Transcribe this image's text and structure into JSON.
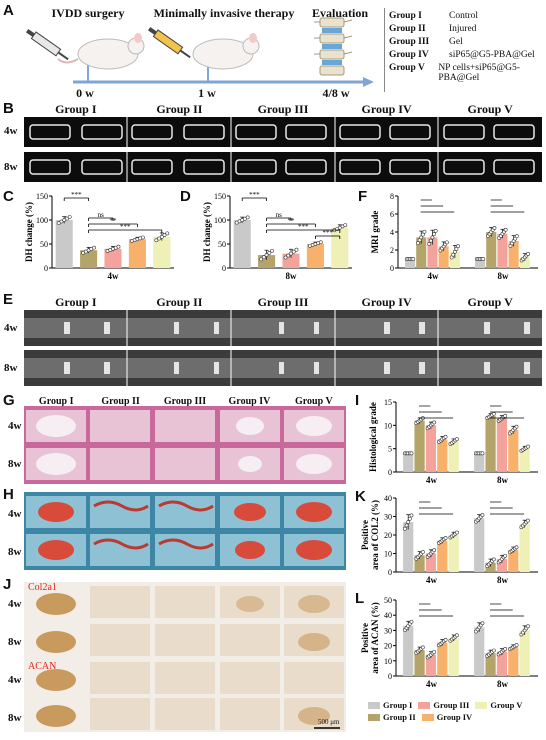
{
  "panel_letters": [
    "A",
    "B",
    "C",
    "D",
    "F",
    "E",
    "G",
    "I",
    "H",
    "K",
    "J",
    "L"
  ],
  "schematic": {
    "steps": [
      "IVDD surgery",
      "Minimally invasive therapy",
      "Evaluation"
    ],
    "timepoints": [
      "0 w",
      "1 w",
      "4/8 w"
    ]
  },
  "groups_legend": [
    {
      "id": "Group I",
      "desc": "Control"
    },
    {
      "id": "Group II",
      "desc": "Injured"
    },
    {
      "id": "Group III",
      "desc": "Gel"
    },
    {
      "id": "Group IV",
      "desc": "siP65@G5-PBA@Gel"
    },
    {
      "id": "Group V",
      "desc": "NP cells+siP65@G5-PBA@Gel"
    }
  ],
  "group_titles": [
    "Group I",
    "Group II",
    "Group III",
    "Group IV",
    "Group V"
  ],
  "row_labels": {
    "w4": "4w",
    "w8": "8w"
  },
  "stain_labels": {
    "col": "Col2a1",
    "acan": "ACAN"
  },
  "scalebar": "500 μm",
  "colors": {
    "g1": "#c9c9c9",
    "g2": "#b5a469",
    "g3": "#f4a29c",
    "g4": "#f7b16b",
    "g5": "#eef0b5",
    "sig": "#111111"
  },
  "bottom_legend": [
    "Group I",
    "Group II",
    "Group III",
    "Group IV",
    "Group V"
  ],
  "chart_data": [
    {
      "id": "C",
      "type": "bar",
      "ylabel": "DH change (%)",
      "xlabel": "4w",
      "ylim": [
        0,
        150
      ],
      "yticks": [
        0,
        50,
        100,
        150
      ],
      "values": [
        100,
        37,
        40,
        60,
        65
      ],
      "errors": [
        7,
        6,
        5,
        4,
        8
      ],
      "sig": [
        {
          "a": 0,
          "b": 1,
          "t": "***"
        },
        {
          "a": 1,
          "b": 2,
          "t": "ns"
        },
        {
          "a": 1,
          "b": 3,
          "t": "**"
        },
        {
          "a": 1,
          "b": 4,
          "t": "***"
        }
      ]
    },
    {
      "id": "D",
      "type": "bar",
      "ylabel": "DH change (%)",
      "xlabel": "8w",
      "ylim": [
        0,
        150
      ],
      "yticks": [
        0,
        50,
        100,
        150
      ],
      "values": [
        100,
        27,
        30,
        50,
        84
      ],
      "errors": [
        6,
        10,
        9,
        4,
        6
      ],
      "sig": [
        {
          "a": 0,
          "b": 1,
          "t": "***"
        },
        {
          "a": 1,
          "b": 2,
          "t": "ns"
        },
        {
          "a": 1,
          "b": 3,
          "t": "**"
        },
        {
          "a": 1,
          "b": 4,
          "t": "***"
        },
        {
          "a": 3,
          "b": 4,
          "t": "***"
        }
      ]
    },
    {
      "id": "F",
      "type": "bar",
      "ylabel": "MRI grade",
      "categories": [
        "4w",
        "8w"
      ],
      "ylim": [
        0,
        8
      ],
      "yticks": [
        0,
        2,
        4,
        6,
        8
      ],
      "series": [
        {
          "name": "Group I",
          "values": [
            1,
            1
          ],
          "errors": [
            0,
            0
          ]
        },
        {
          "name": "Group II",
          "values": [
            3.4,
            4.0
          ],
          "errors": [
            0.7,
            0.5
          ]
        },
        {
          "name": "Group III",
          "values": [
            3.4,
            3.8
          ],
          "errors": [
            0.8,
            0.5
          ]
        },
        {
          "name": "Group IV",
          "values": [
            2.4,
            3.0
          ],
          "errors": [
            0.5,
            0.6
          ]
        },
        {
          "name": "Group V",
          "values": [
            1.8,
            1.2
          ],
          "errors": [
            0.7,
            0.4
          ]
        }
      ]
    },
    {
      "id": "I",
      "type": "bar",
      "ylabel": "Histological grade",
      "categories": [
        "4w",
        "8w"
      ],
      "ylim": [
        0,
        15
      ],
      "yticks": [
        0,
        5,
        10,
        15
      ],
      "series": [
        {
          "name": "Group I",
          "values": [
            4,
            4
          ],
          "errors": [
            0,
            0
          ]
        },
        {
          "name": "Group II",
          "values": [
            11,
            12
          ],
          "errors": [
            0.6,
            0.5
          ]
        },
        {
          "name": "Group III",
          "values": [
            10,
            11.5
          ],
          "errors": [
            0.7,
            0.6
          ]
        },
        {
          "name": "Group IV",
          "values": [
            7,
            9
          ],
          "errors": [
            0.6,
            0.8
          ]
        },
        {
          "name": "Group V",
          "values": [
            6.5,
            5
          ],
          "errors": [
            0.6,
            0.5
          ]
        }
      ]
    },
    {
      "id": "K",
      "type": "bar",
      "ylabel": "Positive area of COL2 (%)",
      "categories": [
        "4w",
        "8w"
      ],
      "ylim": [
        0,
        40
      ],
      "yticks": [
        0,
        10,
        20,
        30,
        40
      ],
      "series": [
        {
          "name": "Group I",
          "values": [
            27,
            29
          ],
          "errors": [
            4,
            2
          ]
        },
        {
          "name": "Group II",
          "values": [
            9,
            5
          ],
          "errors": [
            2,
            2
          ]
        },
        {
          "name": "Group III",
          "values": [
            10,
            7
          ],
          "errors": [
            2,
            2
          ]
        },
        {
          "name": "Group IV",
          "values": [
            17,
            12
          ],
          "errors": [
            1.5,
            1.5
          ]
        },
        {
          "name": "Group V",
          "values": [
            20,
            26
          ],
          "errors": [
            1.5,
            2
          ]
        }
      ]
    },
    {
      "id": "L",
      "type": "bar",
      "ylabel": "Positive area of ACAN (%)",
      "categories": [
        "4w",
        "8w"
      ],
      "ylim": [
        0,
        50
      ],
      "yticks": [
        0,
        10,
        20,
        30,
        40,
        50
      ],
      "series": [
        {
          "name": "Group I",
          "values": [
            33,
            32
          ],
          "errors": [
            3,
            3
          ]
        },
        {
          "name": "Group II",
          "values": [
            17,
            15
          ],
          "errors": [
            2,
            2
          ]
        },
        {
          "name": "Group III",
          "values": [
            14,
            16
          ],
          "errors": [
            2,
            2
          ]
        },
        {
          "name": "Group IV",
          "values": [
            22,
            19
          ],
          "errors": [
            2,
            1.5
          ]
        },
        {
          "name": "Group V",
          "values": [
            25,
            30
          ],
          "errors": [
            2,
            3
          ]
        }
      ]
    }
  ]
}
